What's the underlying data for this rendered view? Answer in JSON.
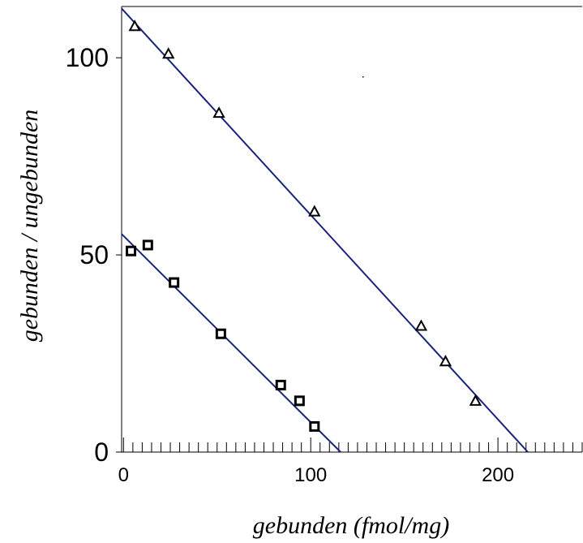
{
  "chart_data": {
    "type": "scatter",
    "title": "",
    "xlabel": "gebunden (fmol/mg)",
    "ylabel": "gebunden / ungebunden",
    "xlim": [
      -1,
      245
    ],
    "ylim": [
      0,
      113
    ],
    "x_ticks": [
      0,
      100,
      200
    ],
    "x_tick_labels": [
      "0",
      "100",
      "200"
    ],
    "x_minor_step": 5,
    "y_ticks": [
      0,
      50,
      100
    ],
    "y_tick_labels": [
      "0",
      "50",
      "100"
    ],
    "grid": false,
    "legend": "none",
    "line_color": "#1a237e",
    "series": [
      {
        "marker": "triangle",
        "x": [
          6,
          24,
          51,
          102,
          159,
          172,
          188
        ],
        "y": [
          108,
          101,
          86,
          61,
          32,
          23,
          13
        ],
        "fit_line": {
          "x": [
            -1,
            216
          ],
          "y": [
            112.5,
            0
          ]
        }
      },
      {
        "marker": "square",
        "x": [
          4,
          13,
          27,
          52,
          84,
          94,
          102
        ],
        "y": [
          51,
          52.5,
          43,
          30,
          17,
          13,
          6.5
        ],
        "fit_line": {
          "x": [
            -1,
            116
          ],
          "y": [
            55.3,
            0
          ]
        }
      }
    ]
  }
}
